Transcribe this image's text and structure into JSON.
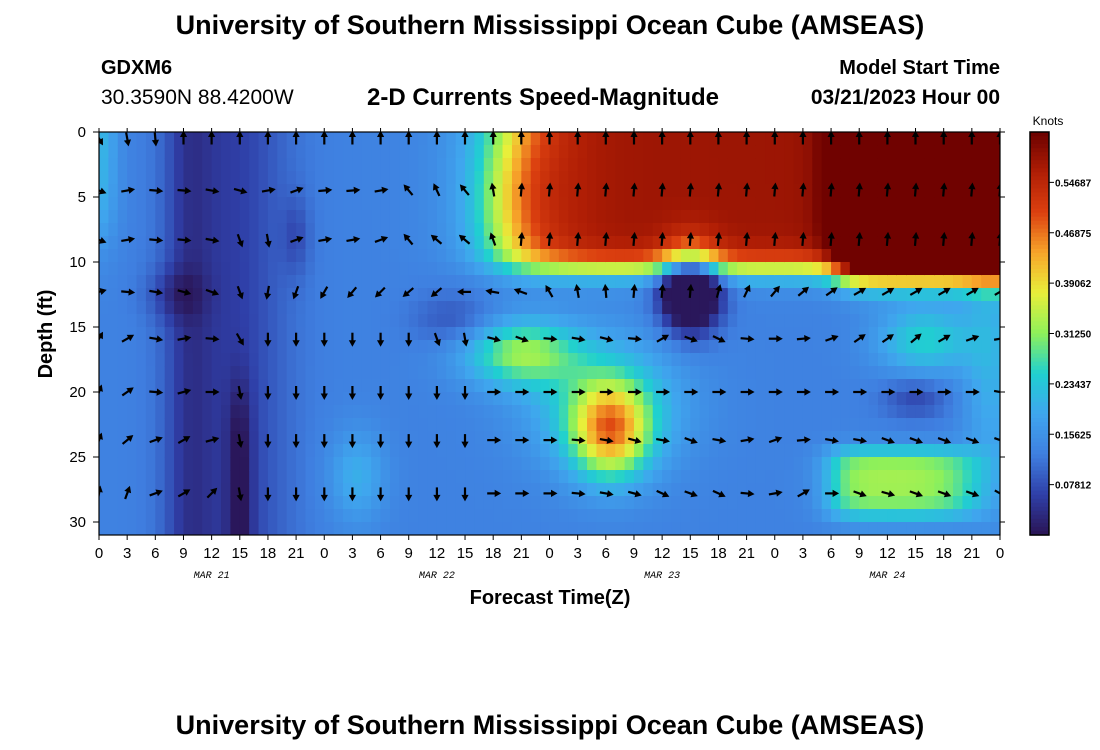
{
  "header": {
    "title": "University of Southern Mississippi Ocean Cube (AMSEAS)",
    "station": "GDXM6",
    "location": "30.3590N  88.4200W",
    "subtitle": "2-D Currents Speed-Magnitude",
    "model_start_label": "Model Start Time",
    "model_start_value": "03/21/2023 Hour 00",
    "footer_title": "University of Southern Mississippi Ocean Cube (AMSEAS)"
  },
  "colors": {
    "scale": [
      "#2a1454",
      "#2f3fa8",
      "#3f7fe0",
      "#3fa6ee",
      "#1fd0d0",
      "#8ef05a",
      "#e8ef3a",
      "#f7a52a",
      "#dc4010",
      "#b01e05",
      "#6a0000"
    ]
  },
  "chart_data": {
    "type": "heatmap",
    "title": "2-D Currents Speed-Magnitude",
    "xlabel": "Forecast Time(Z)",
    "ylabel": "Depth (ft)",
    "x_tick_labels": [
      "0",
      "3",
      "6",
      "9",
      "12",
      "15",
      "18",
      "21",
      "0",
      "3",
      "6",
      "9",
      "12",
      "15",
      "18",
      "21",
      "0",
      "3",
      "6",
      "9",
      "12",
      "15",
      "18",
      "21",
      "0",
      "3",
      "6",
      "9",
      "12",
      "15",
      "18",
      "21",
      "0"
    ],
    "date_labels": [
      {
        "label": "MAR 21",
        "hour": 12
      },
      {
        "label": "MAR 22",
        "hour": 36
      },
      {
        "label": "MAR 23",
        "hour": 60
      },
      {
        "label": "MAR 24",
        "hour": 84
      }
    ],
    "x_range_hours": [
      0,
      96
    ],
    "y_ticks": [
      0,
      5,
      10,
      15,
      20,
      25,
      30
    ],
    "y_range_ft": [
      0,
      31
    ],
    "colorbar": {
      "label": "Knots",
      "ticks": [
        "0.07812",
        "0.15625",
        "0.23437",
        "0.31250",
        "0.39062",
        "0.46875",
        "0.54687"
      ],
      "range": [
        0,
        0.625
      ]
    },
    "arrow_hours": [
      0,
      3,
      6,
      9,
      12,
      15,
      18,
      21,
      24,
      27,
      30,
      33,
      36,
      39,
      42,
      45,
      48,
      51,
      54,
      57,
      60,
      63,
      66,
      69,
      72,
      75,
      78,
      81,
      84,
      87,
      90,
      93,
      96
    ],
    "arrow_depths_ft": [
      0.5,
      4.5,
      8.3,
      12.3,
      15.9,
      20,
      23.7,
      27.8
    ],
    "arrow_directions_deg": [
      [
        150,
        170,
        175,
        0,
        0,
        0,
        0,
        0,
        0,
        0,
        0,
        0,
        0,
        0,
        0,
        0,
        0,
        0,
        0,
        0,
        0,
        0,
        0,
        0,
        0,
        0,
        0,
        0,
        0,
        0,
        0,
        0,
        0
      ],
      [
        110,
        80,
        95,
        95,
        100,
        105,
        80,
        70,
        85,
        85,
        80,
        320,
        335,
        320,
        350,
        5,
        5,
        5,
        5,
        5,
        5,
        5,
        5,
        5,
        5,
        5,
        5,
        5,
        5,
        5,
        5,
        5,
        5
      ],
      [
        110,
        80,
        95,
        95,
        100,
        160,
        170,
        70,
        80,
        80,
        70,
        320,
        310,
        310,
        340,
        5,
        5,
        5,
        5,
        5,
        5,
        5,
        5,
        5,
        5,
        5,
        5,
        5,
        5,
        5,
        5,
        5,
        5
      ],
      [
        75,
        95,
        100,
        105,
        110,
        160,
        190,
        200,
        210,
        220,
        225,
        230,
        230,
        270,
        280,
        290,
        330,
        350,
        355,
        5,
        5,
        5,
        15,
        25,
        40,
        50,
        55,
        60,
        60,
        60,
        60,
        60,
        60
      ],
      [
        30,
        60,
        100,
        80,
        95,
        150,
        180,
        180,
        180,
        180,
        180,
        180,
        160,
        170,
        105,
        110,
        95,
        100,
        105,
        95,
        60,
        110,
        115,
        95,
        90,
        85,
        70,
        55,
        55,
        50,
        60,
        70,
        80
      ],
      [
        20,
        55,
        95,
        75,
        90,
        170,
        180,
        180,
        180,
        180,
        180,
        180,
        180,
        180,
        90,
        90,
        90,
        90,
        90,
        90,
        90,
        90,
        90,
        90,
        90,
        90,
        90,
        90,
        90,
        90,
        90,
        90,
        100
      ],
      [
        20,
        50,
        70,
        60,
        75,
        170,
        180,
        180,
        180,
        180,
        180,
        180,
        180,
        180,
        90,
        90,
        90,
        95,
        100,
        105,
        100,
        110,
        100,
        80,
        70,
        85,
        100,
        100,
        110,
        110,
        110,
        110,
        110
      ],
      [
        10,
        20,
        70,
        60,
        45,
        170,
        180,
        180,
        180,
        180,
        180,
        180,
        180,
        180,
        90,
        90,
        90,
        95,
        100,
        105,
        115,
        110,
        115,
        95,
        80,
        60,
        90,
        110,
        105,
        110,
        110,
        110,
        120
      ]
    ]
  }
}
